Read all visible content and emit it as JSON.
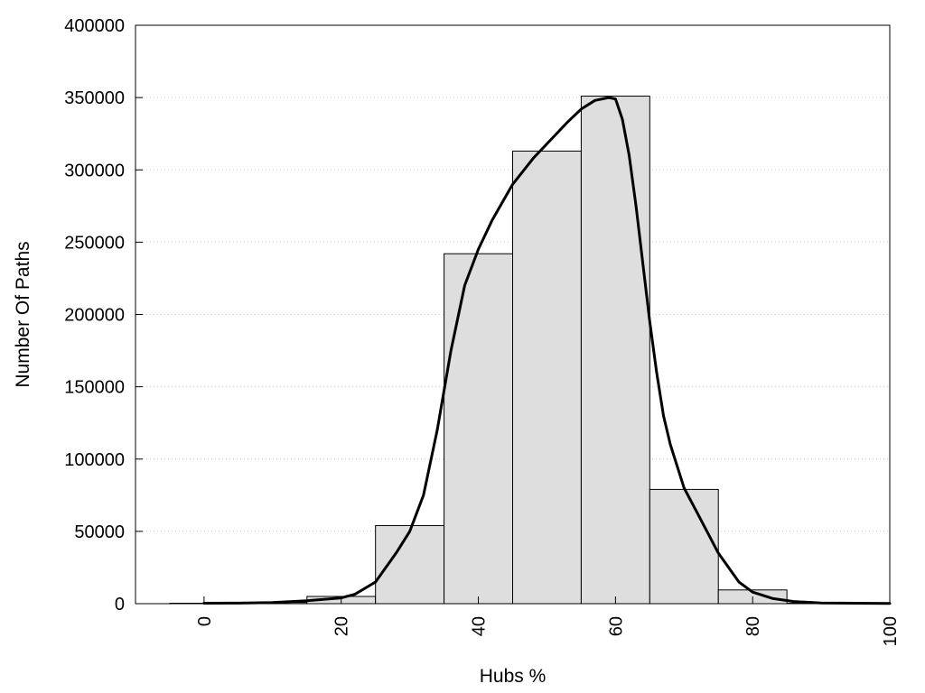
{
  "chart_data": {
    "type": "bar",
    "title": "",
    "xlabel": "Hubs %",
    "ylabel": "Number Of Paths",
    "xlim": [
      -10,
      100
    ],
    "ylim": [
      0,
      400000
    ],
    "xticks": [
      0,
      20,
      40,
      60,
      80,
      100
    ],
    "yticks": [
      0,
      50000,
      100000,
      150000,
      200000,
      250000,
      300000,
      350000,
      400000
    ],
    "grid": "horizontal-dotted",
    "bar_width": 10,
    "bars": [
      {
        "x": 0,
        "value": 300
      },
      {
        "x": 10,
        "value": 800
      },
      {
        "x": 20,
        "value": 5000
      },
      {
        "x": 30,
        "value": 54000
      },
      {
        "x": 40,
        "value": 242000
      },
      {
        "x": 50,
        "value": 313000
      },
      {
        "x": 60,
        "value": 351000
      },
      {
        "x": 70,
        "value": 79000
      },
      {
        "x": 80,
        "value": 9500
      },
      {
        "x": 90,
        "value": 300
      }
    ],
    "curve": [
      [
        0,
        300
      ],
      [
        5,
        400
      ],
      [
        10,
        800
      ],
      [
        15,
        2000
      ],
      [
        20,
        4000
      ],
      [
        22,
        6500
      ],
      [
        25,
        15000
      ],
      [
        28,
        35000
      ],
      [
        30,
        50000
      ],
      [
        32,
        75000
      ],
      [
        34,
        120000
      ],
      [
        36,
        175000
      ],
      [
        38,
        220000
      ],
      [
        40,
        245000
      ],
      [
        42,
        265000
      ],
      [
        45,
        290000
      ],
      [
        48,
        308000
      ],
      [
        50,
        318000
      ],
      [
        53,
        333000
      ],
      [
        55,
        342000
      ],
      [
        57,
        348000
      ],
      [
        59,
        350000
      ],
      [
        60,
        349000
      ],
      [
        61,
        335000
      ],
      [
        62,
        310000
      ],
      [
        63,
        275000
      ],
      [
        64,
        235000
      ],
      [
        65,
        195000
      ],
      [
        66,
        160000
      ],
      [
        67,
        130000
      ],
      [
        68,
        110000
      ],
      [
        70,
        80000
      ],
      [
        72,
        62000
      ],
      [
        75,
        35000
      ],
      [
        78,
        15000
      ],
      [
        80,
        8000
      ],
      [
        83,
        3500
      ],
      [
        86,
        1500
      ],
      [
        90,
        500
      ],
      [
        95,
        300
      ],
      [
        100,
        200
      ]
    ],
    "colors": {
      "bar_fill": "#dedede",
      "bar_stroke": "#000000",
      "curve": "#000000",
      "grid": "#c8c8c8"
    }
  }
}
